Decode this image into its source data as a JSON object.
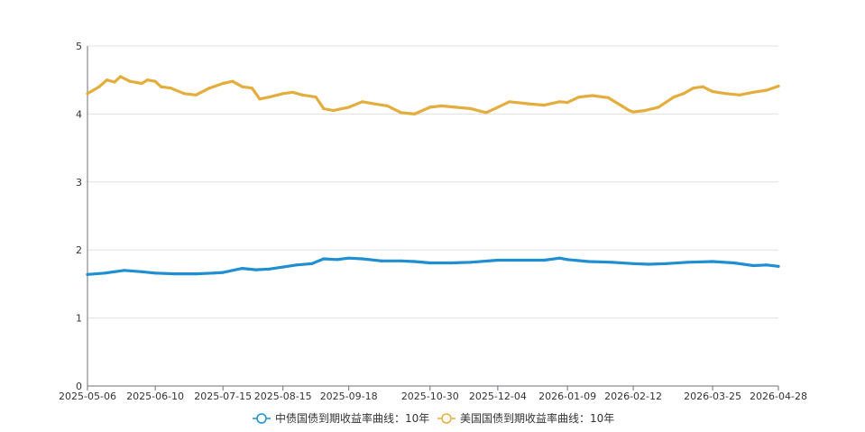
{
  "chart_data": {
    "type": "line",
    "title": "",
    "xlabel": "",
    "ylabel": "",
    "ylim": [
      0,
      5
    ],
    "y_ticks": [
      "0",
      "1",
      "2",
      "3",
      "4",
      "5"
    ],
    "x_tick_labels": [
      "2025-05-06",
      "2025-06-10",
      "2025-07-15",
      "2025-08-15",
      "2025-09-18",
      "2025-10-30",
      "2025-12-04",
      "2026-01-09",
      "2026-02-12",
      "2026-03-25",
      "2026-04-28"
    ],
    "grid": "horizontal",
    "legend_position": "bottom",
    "x_range": [
      "2025-05-06",
      "2026-04-28"
    ],
    "series": [
      {
        "name": "中债国债到期收益率曲线：10年",
        "color": "#1f8fd1",
        "points": [
          [
            "2025-05-06",
            1.64
          ],
          [
            "2025-05-15",
            1.66
          ],
          [
            "2025-05-25",
            1.7
          ],
          [
            "2025-06-03",
            1.68
          ],
          [
            "2025-06-10",
            1.66
          ],
          [
            "2025-06-20",
            1.65
          ],
          [
            "2025-07-01",
            1.65
          ],
          [
            "2025-07-10",
            1.66
          ],
          [
            "2025-07-15",
            1.67
          ],
          [
            "2025-07-25",
            1.73
          ],
          [
            "2025-08-01",
            1.71
          ],
          [
            "2025-08-08",
            1.72
          ],
          [
            "2025-08-15",
            1.75
          ],
          [
            "2025-08-22",
            1.78
          ],
          [
            "2025-08-30",
            1.8
          ],
          [
            "2025-09-05",
            1.87
          ],
          [
            "2025-09-12",
            1.86
          ],
          [
            "2025-09-18",
            1.88
          ],
          [
            "2025-09-25",
            1.87
          ],
          [
            "2025-10-05",
            1.84
          ],
          [
            "2025-10-15",
            1.84
          ],
          [
            "2025-10-22",
            1.83
          ],
          [
            "2025-10-30",
            1.81
          ],
          [
            "2025-11-10",
            1.81
          ],
          [
            "2025-11-20",
            1.82
          ],
          [
            "2025-12-04",
            1.85
          ],
          [
            "2025-12-15",
            1.85
          ],
          [
            "2025-12-28",
            1.85
          ],
          [
            "2026-01-05",
            1.88
          ],
          [
            "2026-01-09",
            1.86
          ],
          [
            "2026-01-20",
            1.83
          ],
          [
            "2026-02-01",
            1.82
          ],
          [
            "2026-02-12",
            1.8
          ],
          [
            "2026-02-20",
            1.79
          ],
          [
            "2026-03-01",
            1.8
          ],
          [
            "2026-03-12",
            1.82
          ],
          [
            "2026-03-25",
            1.83
          ],
          [
            "2026-04-05",
            1.81
          ],
          [
            "2026-04-15",
            1.77
          ],
          [
            "2026-04-22",
            1.78
          ],
          [
            "2026-04-28",
            1.76
          ]
        ]
      },
      {
        "name": "美国国债到期收益率曲线：10年",
        "color": "#e3ae3d",
        "points": [
          [
            "2025-05-06",
            4.3
          ],
          [
            "2025-05-12",
            4.4
          ],
          [
            "2025-05-16",
            4.5
          ],
          [
            "2025-05-20",
            4.47
          ],
          [
            "2025-05-23",
            4.55
          ],
          [
            "2025-05-28",
            4.48
          ],
          [
            "2025-06-03",
            4.45
          ],
          [
            "2025-06-06",
            4.5
          ],
          [
            "2025-06-10",
            4.48
          ],
          [
            "2025-06-13",
            4.4
          ],
          [
            "2025-06-18",
            4.38
          ],
          [
            "2025-06-25",
            4.3
          ],
          [
            "2025-07-01",
            4.28
          ],
          [
            "2025-07-08",
            4.38
          ],
          [
            "2025-07-15",
            4.45
          ],
          [
            "2025-07-20",
            4.48
          ],
          [
            "2025-07-25",
            4.4
          ],
          [
            "2025-07-30",
            4.38
          ],
          [
            "2025-08-03",
            4.22
          ],
          [
            "2025-08-08",
            4.25
          ],
          [
            "2025-08-15",
            4.3
          ],
          [
            "2025-08-20",
            4.32
          ],
          [
            "2025-08-25",
            4.28
          ],
          [
            "2025-09-01",
            4.25
          ],
          [
            "2025-09-05",
            4.08
          ],
          [
            "2025-09-10",
            4.05
          ],
          [
            "2025-09-18",
            4.1
          ],
          [
            "2025-09-25",
            4.18
          ],
          [
            "2025-10-01",
            4.15
          ],
          [
            "2025-10-08",
            4.12
          ],
          [
            "2025-10-15",
            4.02
          ],
          [
            "2025-10-22",
            4.0
          ],
          [
            "2025-10-30",
            4.1
          ],
          [
            "2025-11-05",
            4.12
          ],
          [
            "2025-11-12",
            4.1
          ],
          [
            "2025-11-20",
            4.08
          ],
          [
            "2025-11-28",
            4.02
          ],
          [
            "2025-12-04",
            4.1
          ],
          [
            "2025-12-10",
            4.18
          ],
          [
            "2025-12-20",
            4.15
          ],
          [
            "2025-12-28",
            4.13
          ],
          [
            "2026-01-05",
            4.18
          ],
          [
            "2026-01-09",
            4.17
          ],
          [
            "2026-01-15",
            4.25
          ],
          [
            "2026-01-22",
            4.27
          ],
          [
            "2026-01-30",
            4.24
          ],
          [
            "2026-02-06",
            4.12
          ],
          [
            "2026-02-10",
            4.05
          ],
          [
            "2026-02-12",
            4.03
          ],
          [
            "2026-02-18",
            4.05
          ],
          [
            "2026-02-25",
            4.1
          ],
          [
            "2026-03-05",
            4.25
          ],
          [
            "2026-03-10",
            4.3
          ],
          [
            "2026-03-15",
            4.38
          ],
          [
            "2026-03-20",
            4.4
          ],
          [
            "2026-03-25",
            4.33
          ],
          [
            "2026-04-01",
            4.3
          ],
          [
            "2026-04-08",
            4.28
          ],
          [
            "2026-04-15",
            4.32
          ],
          [
            "2026-04-22",
            4.35
          ],
          [
            "2026-04-28",
            4.41
          ]
        ]
      }
    ]
  }
}
